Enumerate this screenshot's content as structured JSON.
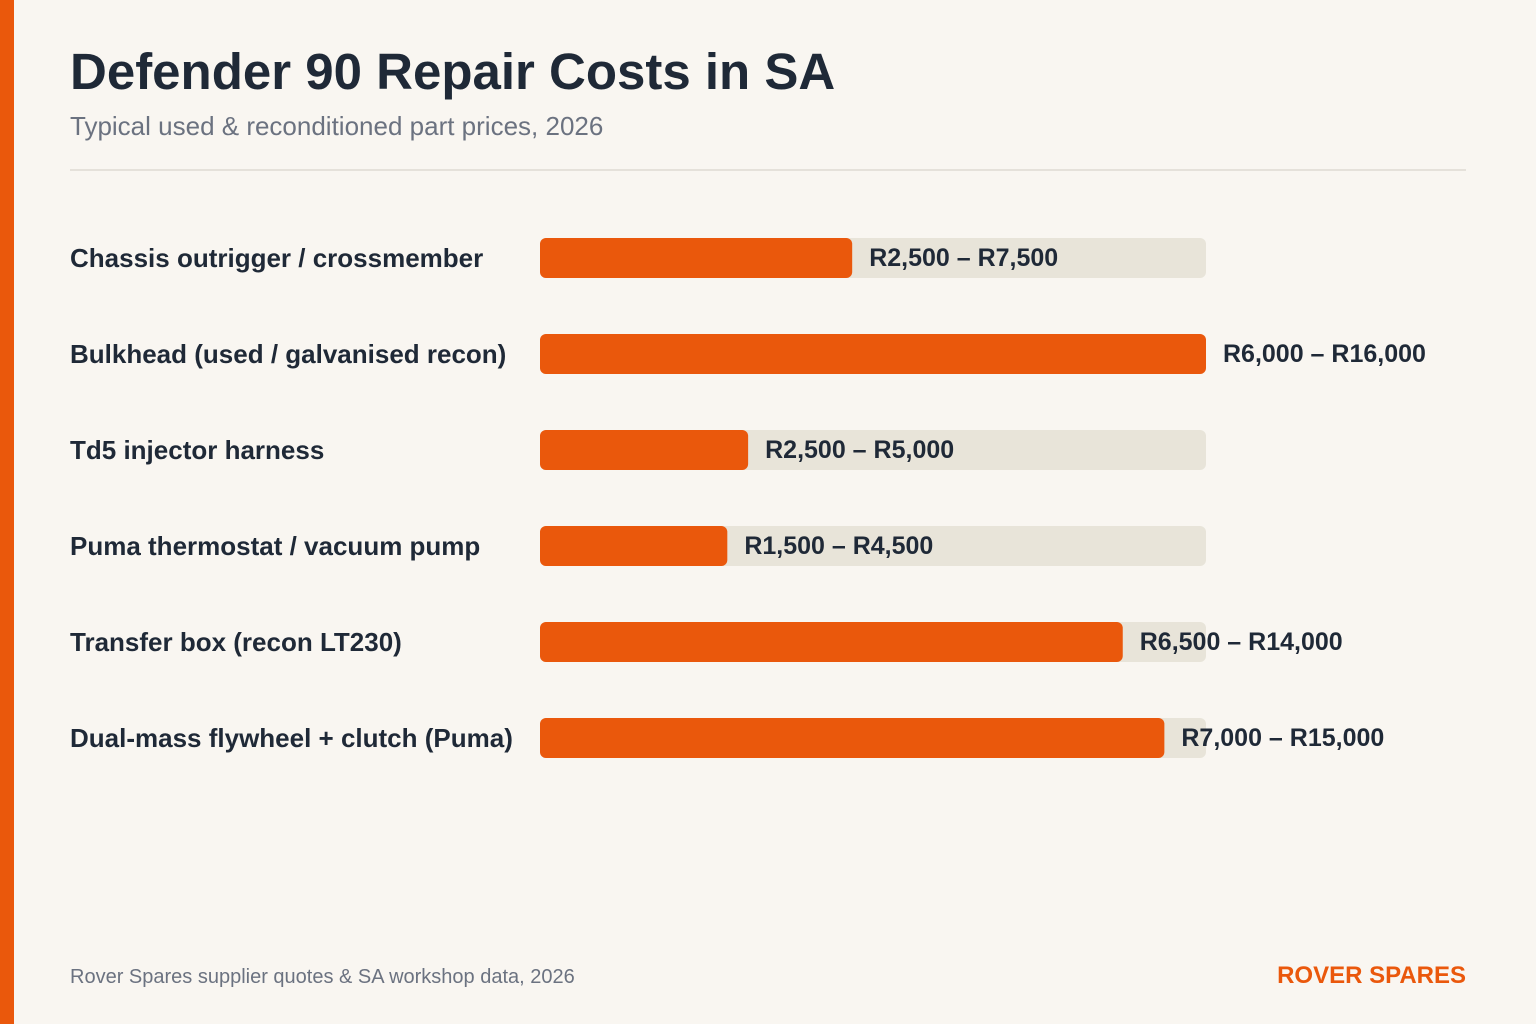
{
  "header": {
    "title": "Defender 90 Repair Costs in SA",
    "subtitle": "Typical used & reconditioned part prices, 2026"
  },
  "footer": {
    "source": "Rover Spares supplier quotes & SA workshop data, 2026",
    "brand": "ROVER SPARES"
  },
  "colors": {
    "accent": "#ea580c",
    "track": "#e8e4d9",
    "text": "#1f2937",
    "muted": "#6b7280",
    "background": "#f9f6f1"
  },
  "chart_data": {
    "type": "bar",
    "orientation": "horizontal",
    "title": "Defender 90 Repair Costs in SA",
    "subtitle": "Typical used & reconditioned part prices, 2026",
    "unit": "ZAR",
    "xlim": [
      0,
      16000
    ],
    "grid": false,
    "legend": "none",
    "categories": [
      "Chassis outrigger / crossmember",
      "Bulkhead (used / galvanised recon)",
      "Td5 injector harness",
      "Puma thermostat / vacuum pump",
      "Transfer box (recon LT230)",
      "Dual-mass flywheel + clutch (Puma)"
    ],
    "values": [
      7500,
      16000,
      5000,
      4500,
      14000,
      15000
    ],
    "ranges": [
      [
        2500,
        7500
      ],
      [
        6000,
        16000
      ],
      [
        2500,
        5000
      ],
      [
        1500,
        4500
      ],
      [
        6500,
        14000
      ],
      [
        7000,
        15000
      ]
    ],
    "data_labels": [
      "R2,500 – R7,500",
      "R6,000 – R16,000",
      "R2,500 – R5,000",
      "R1,500 – R4,500",
      "R6,500 – R14,000",
      "R7,000 – R15,000"
    ]
  }
}
